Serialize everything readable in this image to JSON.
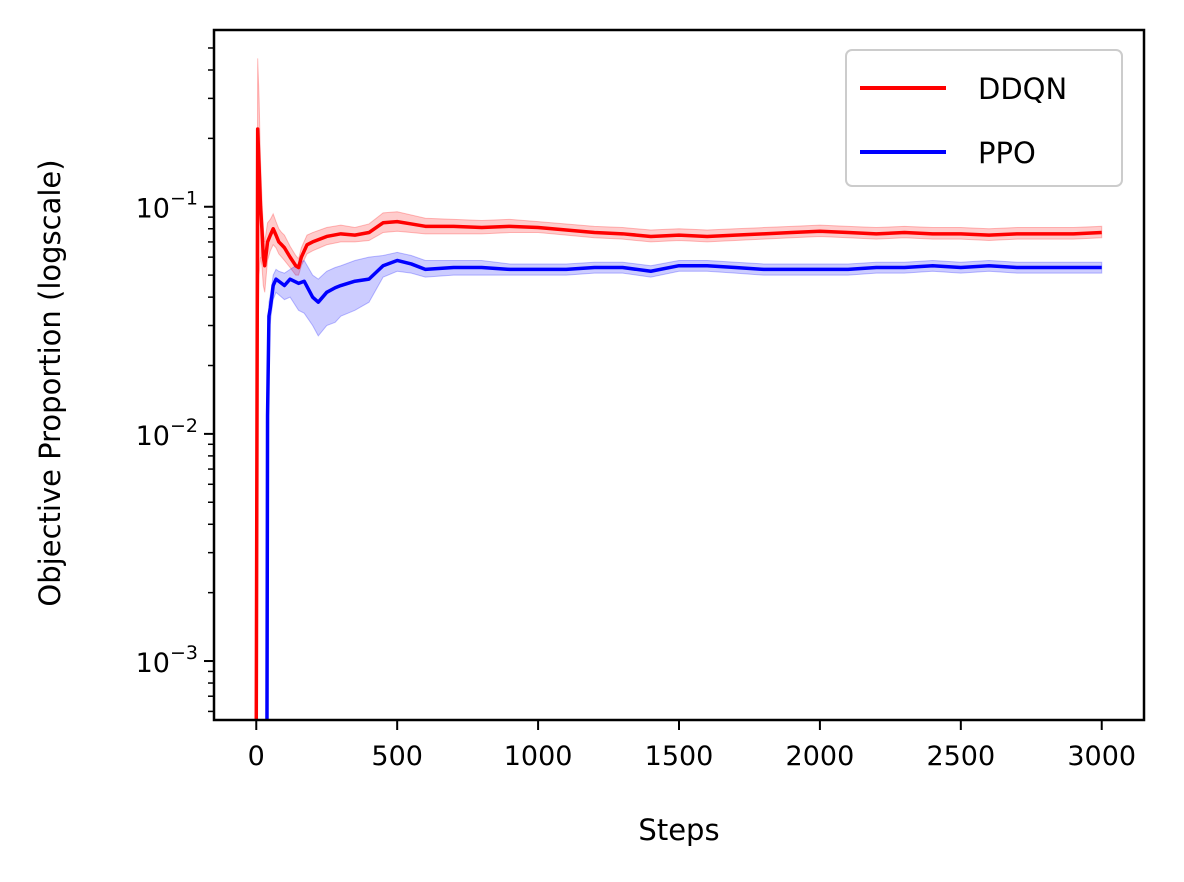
{
  "chart_data": {
    "type": "line",
    "title": "",
    "xlabel": "Steps",
    "ylabel": "Objective Proportion (logscale)",
    "xlim": [
      -150,
      3150
    ],
    "ylim": [
      0.00055,
      0.6
    ],
    "yscale": "log",
    "grid": false,
    "legend_position": "top-right",
    "x_ticks": [
      0,
      500,
      1000,
      1500,
      2000,
      2500,
      3000
    ],
    "x_tick_labels": [
      "0",
      "500",
      "1000",
      "1500",
      "2000",
      "2500",
      "3000"
    ],
    "y_major_ticks": [
      0.001,
      0.01,
      0.1
    ],
    "y_tick_labels": [
      {
        "base": "10",
        "exp": "−3"
      },
      {
        "base": "10",
        "exp": "−2"
      },
      {
        "base": "10",
        "exp": "−1"
      }
    ],
    "series": [
      {
        "name": "DDQN",
        "color": "#ff0000",
        "band_color": "#ff0000",
        "x": [
          0,
          5,
          10,
          15,
          20,
          25,
          30,
          40,
          50,
          60,
          70,
          80,
          90,
          100,
          120,
          140,
          150,
          160,
          180,
          200,
          250,
          300,
          350,
          400,
          450,
          500,
          550,
          600,
          700,
          800,
          900,
          1000,
          1100,
          1200,
          1300,
          1400,
          1500,
          1600,
          1700,
          1800,
          1900,
          2000,
          2100,
          2200,
          2300,
          2400,
          2500,
          2600,
          2700,
          2800,
          2900,
          3000
        ],
        "y": [
          0.0005,
          0.22,
          0.15,
          0.1,
          0.08,
          0.06,
          0.055,
          0.07,
          0.075,
          0.08,
          0.075,
          0.07,
          0.068,
          0.066,
          0.06,
          0.055,
          0.054,
          0.06,
          0.068,
          0.07,
          0.074,
          0.076,
          0.075,
          0.077,
          0.085,
          0.086,
          0.084,
          0.082,
          0.082,
          0.081,
          0.082,
          0.081,
          0.079,
          0.077,
          0.076,
          0.074,
          0.075,
          0.074,
          0.075,
          0.076,
          0.077,
          0.078,
          0.077,
          0.076,
          0.077,
          0.076,
          0.076,
          0.075,
          0.076,
          0.076,
          0.076,
          0.077
        ],
        "lower": [
          0.0005,
          0.02,
          0.05,
          0.06,
          0.055,
          0.045,
          0.042,
          0.058,
          0.064,
          0.068,
          0.066,
          0.062,
          0.06,
          0.058,
          0.054,
          0.05,
          0.05,
          0.055,
          0.062,
          0.064,
          0.068,
          0.07,
          0.07,
          0.071,
          0.077,
          0.078,
          0.077,
          0.076,
          0.076,
          0.076,
          0.077,
          0.077,
          0.075,
          0.073,
          0.072,
          0.07,
          0.071,
          0.07,
          0.071,
          0.072,
          0.073,
          0.074,
          0.073,
          0.072,
          0.073,
          0.072,
          0.072,
          0.071,
          0.072,
          0.072,
          0.072,
          0.073
        ],
        "upper": [
          0.0005,
          0.45,
          0.3,
          0.16,
          0.11,
          0.08,
          0.07,
          0.085,
          0.088,
          0.093,
          0.086,
          0.08,
          0.077,
          0.075,
          0.067,
          0.061,
          0.059,
          0.066,
          0.075,
          0.077,
          0.081,
          0.083,
          0.081,
          0.084,
          0.094,
          0.095,
          0.092,
          0.089,
          0.088,
          0.087,
          0.088,
          0.086,
          0.084,
          0.082,
          0.081,
          0.079,
          0.08,
          0.079,
          0.08,
          0.081,
          0.082,
          0.083,
          0.082,
          0.081,
          0.082,
          0.081,
          0.081,
          0.08,
          0.081,
          0.081,
          0.081,
          0.082
        ]
      },
      {
        "name": "PPO",
        "color": "#0000ff",
        "band_color": "#0000ff",
        "x": [
          38,
          40,
          45,
          50,
          55,
          60,
          70,
          80,
          100,
          120,
          150,
          170,
          200,
          220,
          250,
          280,
          300,
          350,
          400,
          450,
          500,
          550,
          600,
          700,
          800,
          900,
          1000,
          1100,
          1200,
          1300,
          1400,
          1500,
          1600,
          1700,
          1800,
          1900,
          2000,
          2100,
          2200,
          2300,
          2400,
          2500,
          2600,
          2700,
          2800,
          2900,
          3000
        ],
        "y": [
          0.0005,
          0.012,
          0.033,
          0.036,
          0.04,
          0.045,
          0.048,
          0.047,
          0.045,
          0.048,
          0.046,
          0.047,
          0.04,
          0.038,
          0.042,
          0.044,
          0.045,
          0.047,
          0.048,
          0.055,
          0.058,
          0.056,
          0.053,
          0.054,
          0.054,
          0.053,
          0.053,
          0.053,
          0.054,
          0.054,
          0.052,
          0.055,
          0.055,
          0.054,
          0.053,
          0.053,
          0.053,
          0.053,
          0.054,
          0.054,
          0.055,
          0.054,
          0.055,
          0.054,
          0.054,
          0.054,
          0.054
        ],
        "lower": [
          0.0005,
          0.01,
          0.028,
          0.031,
          0.035,
          0.039,
          0.042,
          0.041,
          0.039,
          0.04,
          0.035,
          0.034,
          0.03,
          0.027,
          0.03,
          0.031,
          0.033,
          0.035,
          0.038,
          0.049,
          0.052,
          0.051,
          0.049,
          0.05,
          0.05,
          0.05,
          0.05,
          0.05,
          0.051,
          0.051,
          0.049,
          0.052,
          0.052,
          0.051,
          0.05,
          0.05,
          0.05,
          0.05,
          0.051,
          0.051,
          0.052,
          0.051,
          0.052,
          0.051,
          0.051,
          0.051,
          0.051
        ],
        "upper": [
          0.0005,
          0.014,
          0.038,
          0.041,
          0.045,
          0.05,
          0.053,
          0.052,
          0.051,
          0.053,
          0.056,
          0.058,
          0.05,
          0.048,
          0.052,
          0.054,
          0.055,
          0.058,
          0.06,
          0.061,
          0.063,
          0.061,
          0.058,
          0.058,
          0.058,
          0.056,
          0.056,
          0.056,
          0.057,
          0.057,
          0.055,
          0.058,
          0.058,
          0.057,
          0.056,
          0.056,
          0.056,
          0.056,
          0.057,
          0.057,
          0.058,
          0.057,
          0.058,
          0.057,
          0.057,
          0.057,
          0.057
        ]
      }
    ]
  }
}
